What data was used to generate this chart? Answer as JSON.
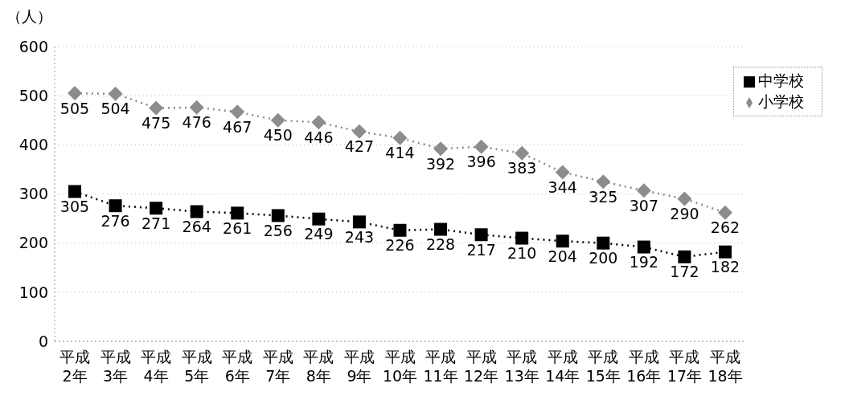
{
  "chart_data": {
    "type": "line",
    "ylabel": "（人）",
    "categories": [
      "平成\n2年",
      "平成\n3年",
      "平成\n4年",
      "平成\n5年",
      "平成\n6年",
      "平成\n7年",
      "平成\n8年",
      "平成\n9年",
      "平成\n10年",
      "平成\n11年",
      "平成\n12年",
      "平成\n13年",
      "平成\n14年",
      "平成\n15年",
      "平成\n16年",
      "平成\n17年",
      "平成\n18年"
    ],
    "series": [
      {
        "name": "小学校",
        "color": "#8c8c8c",
        "marker": "diamond",
        "values": [
          505,
          504,
          475,
          476,
          467,
          450,
          446,
          427,
          414,
          392,
          396,
          383,
          344,
          325,
          307,
          290,
          262
        ]
      },
      {
        "name": "中学校",
        "color": "#000000",
        "marker": "square",
        "values": [
          305,
          276,
          271,
          264,
          261,
          256,
          249,
          243,
          226,
          228,
          217,
          210,
          204,
          200,
          192,
          172,
          182
        ]
      }
    ],
    "ylim": [
      0,
      600
    ],
    "yticks": [
      0,
      100,
      200,
      300,
      400,
      500,
      600
    ],
    "grid": "y",
    "legend": "top right",
    "line_style": "dotted",
    "data_labels": true
  }
}
